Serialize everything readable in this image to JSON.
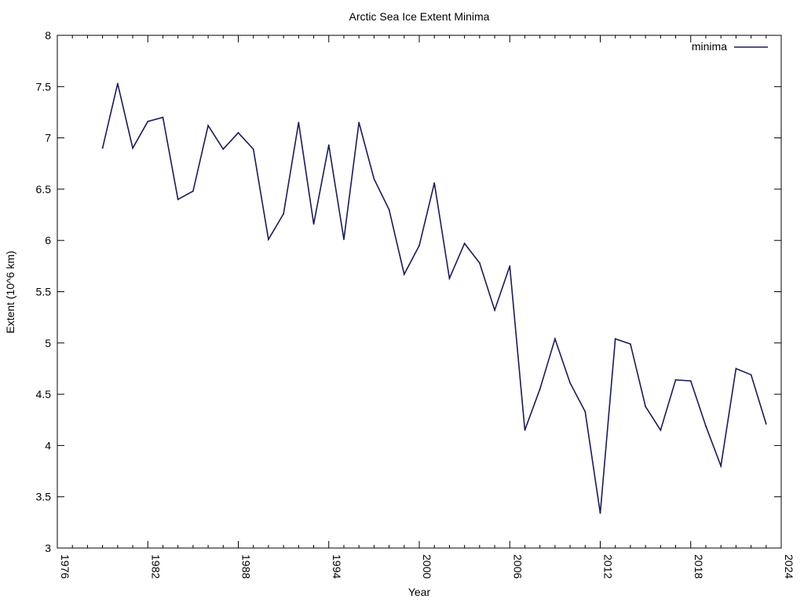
{
  "chart_data": {
    "type": "line",
    "title": "Arctic Sea Ice Extent Minima",
    "xlabel": "Year",
    "ylabel": "Extent (10^6 km)",
    "xlim": [
      1976,
      2024
    ],
    "ylim": [
      3,
      8
    ],
    "xticks": [
      1976,
      1982,
      1988,
      1994,
      2000,
      2006,
      2012,
      2018,
      2024
    ],
    "yticks": [
      3,
      3.5,
      4,
      4.5,
      5,
      5.5,
      6,
      6.5,
      7,
      7.5,
      8
    ],
    "x_minor_step": 1,
    "legend_position": "top-right",
    "grid": false,
    "series": [
      {
        "name": "minima",
        "color": "#1a1a5e",
        "x": [
          1979,
          1980,
          1981,
          1982,
          1983,
          1984,
          1985,
          1986,
          1987,
          1988,
          1989,
          1990,
          1991,
          1992,
          1993,
          1994,
          1995,
          1996,
          1997,
          1998,
          1999,
          2000,
          2001,
          2002,
          2003,
          2004,
          2005,
          2006,
          2007,
          2008,
          2009,
          2010,
          2011,
          2012,
          2013,
          2014,
          2015,
          2016,
          2017,
          2018,
          2019,
          2020,
          2021,
          2022,
          2023
        ],
        "values": [
          6.9,
          7.53,
          6.9,
          7.16,
          7.2,
          6.4,
          6.48,
          7.12,
          6.89,
          7.05,
          6.89,
          6.01,
          6.26,
          7.15,
          6.16,
          6.93,
          6.01,
          7.15,
          6.6,
          6.3,
          5.67,
          5.95,
          6.56,
          5.63,
          5.97,
          5.78,
          5.32,
          5.75,
          4.15,
          4.55,
          5.04,
          4.61,
          4.33,
          3.34,
          5.04,
          4.99,
          4.38,
          4.15,
          4.64,
          4.63,
          4.19,
          3.8,
          4.75,
          4.69,
          4.21
        ]
      }
    ]
  }
}
